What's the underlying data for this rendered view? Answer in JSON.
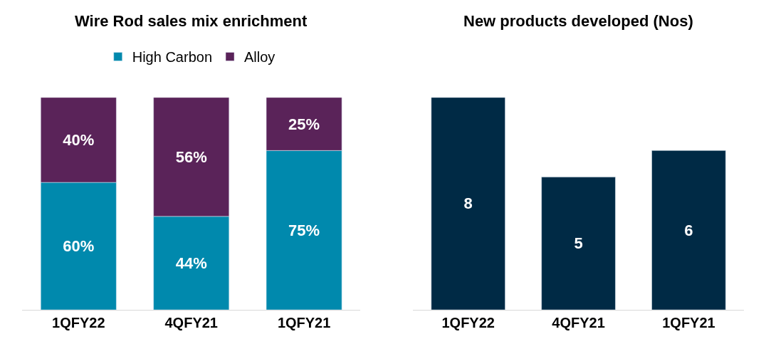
{
  "chart_data": [
    {
      "type": "bar",
      "title": "Wire Rod sales mix enrichment",
      "categories": [
        "1QFY22",
        "4QFY21",
        "1QFY21"
      ],
      "stacked": true,
      "legend": "top",
      "series": [
        {
          "name": "High Carbon",
          "color": "#0089ad",
          "values": [
            60,
            44,
            75
          ],
          "value_labels": [
            "60%",
            "44%",
            "75%"
          ]
        },
        {
          "name": "Alloy",
          "color": "#5a2359",
          "values": [
            40,
            56,
            25
          ],
          "value_labels": [
            "40%",
            "56%",
            "25%"
          ]
        }
      ]
    },
    {
      "type": "bar",
      "title": "New products developed (Nos)",
      "categories": [
        "1QFY22",
        "4QFY21",
        "1QFY21"
      ],
      "values": [
        8,
        5,
        6
      ],
      "color": "#002a45",
      "data_labels": true
    }
  ]
}
